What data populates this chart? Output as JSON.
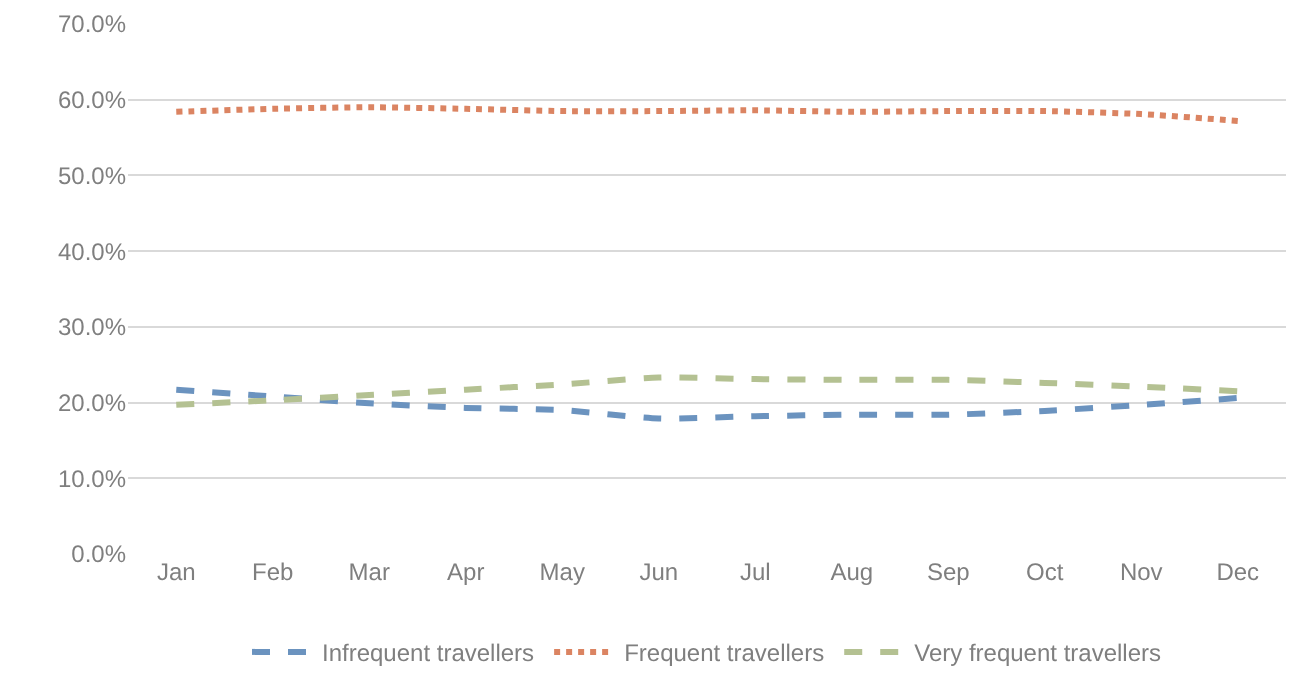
{
  "chart_data": {
    "type": "line",
    "categories": [
      "Jan",
      "Feb",
      "Mar",
      "Apr",
      "May",
      "Jun",
      "Jul",
      "Aug",
      "Sep",
      "Oct",
      "Nov",
      "Dec"
    ],
    "series": [
      {
        "name": "Infrequent travellers",
        "color": "#6b93bf",
        "line_style": "dashed",
        "values": [
          0.217,
          0.208,
          0.199,
          0.193,
          0.19,
          0.179,
          0.182,
          0.184,
          0.184,
          0.189,
          0.197,
          0.206
        ]
      },
      {
        "name": "Frequent travellers",
        "color": "#db8462",
        "line_style": "dotted",
        "values": [
          0.584,
          0.588,
          0.59,
          0.588,
          0.585,
          0.585,
          0.586,
          0.584,
          0.585,
          0.585,
          0.581,
          0.572
        ]
      },
      {
        "name": "Very frequent travellers",
        "color": "#b4c192",
        "line_style": "dashed",
        "values": [
          0.197,
          0.203,
          0.21,
          0.217,
          0.224,
          0.233,
          0.231,
          0.23,
          0.23,
          0.226,
          0.221,
          0.215
        ]
      }
    ],
    "ylim": [
      0,
      0.7
    ],
    "yticks": [
      {
        "value": 0,
        "label": "0.0%"
      },
      {
        "value": 0.1,
        "label": "10.0%"
      },
      {
        "value": 0.2,
        "label": "20.0%"
      },
      {
        "value": 0.3,
        "label": "30.0%"
      },
      {
        "value": 0.4,
        "label": "40.0%"
      },
      {
        "value": 0.5,
        "label": "50.0%"
      },
      {
        "value": 0.6,
        "label": "60.0%"
      },
      {
        "value": 0.7,
        "label": "70.0%"
      }
    ],
    "grid": "y",
    "legend": "bottom",
    "marker": "none"
  }
}
